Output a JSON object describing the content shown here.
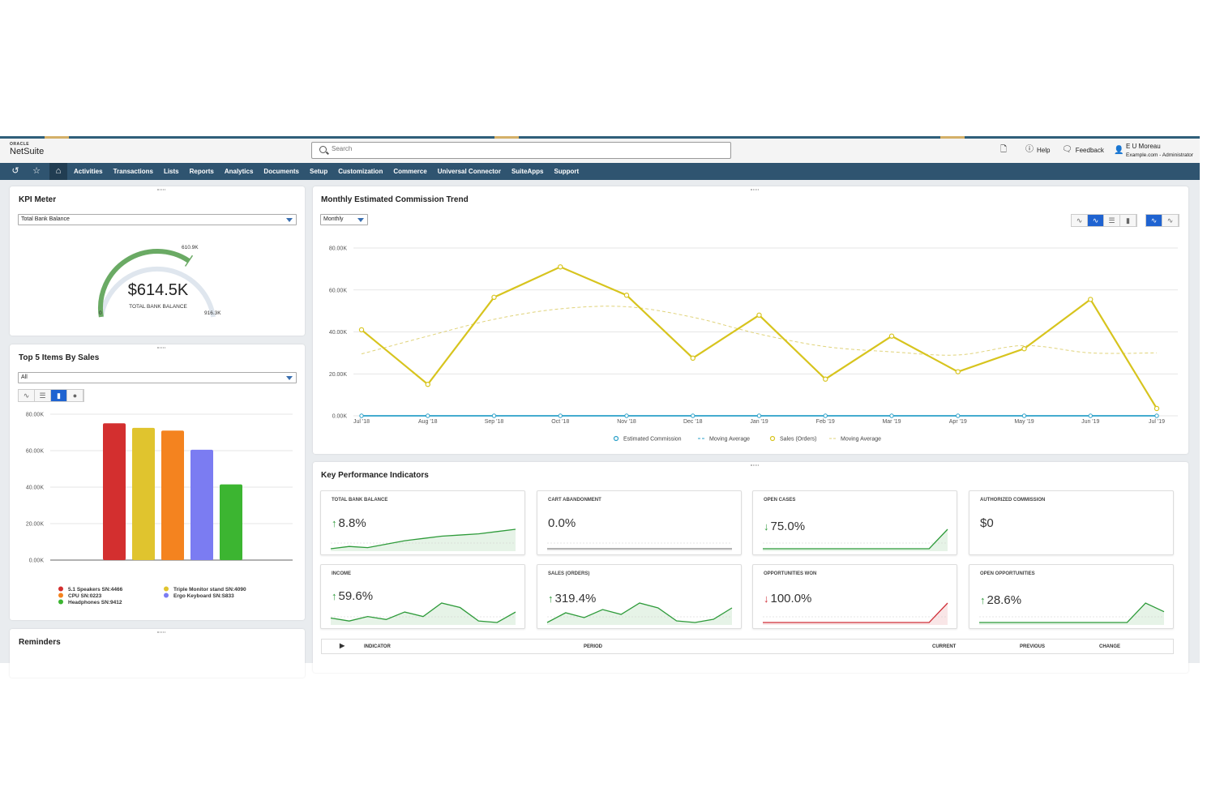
{
  "header": {
    "logo_top": "ORACLE",
    "logo_bottom": "NetSuite",
    "search_placeholder": "Search",
    "help": "Help",
    "feedback": "Feedback",
    "user_name": "E U Moreau",
    "user_sub": "Example.com - Administrator"
  },
  "nav": {
    "items": [
      "Activities",
      "Transactions",
      "Lists",
      "Reports",
      "Analytics",
      "Documents",
      "Setup",
      "Customization",
      "Commerce",
      "Universal Connector",
      "SuiteApps",
      "Support"
    ]
  },
  "kpi_meter": {
    "title": "KPI Meter",
    "select": "Total Bank Balance",
    "value": "$614.5K",
    "label": "TOTAL BANK BALANCE",
    "min": "0",
    "max": "916.3K",
    "target": "610.9K",
    "fraction": 0.671
  },
  "top5": {
    "title": "Top 5 Items By Sales",
    "select": "All"
  },
  "reminders": {
    "title": "Reminders"
  },
  "trend": {
    "title": "Monthly Estimated Commission Trend",
    "select": "Monthly"
  },
  "kpis": {
    "title": "Key Performance Indicators",
    "cards": [
      {
        "title": "TOTAL BANK BALANCE",
        "value": "8.8%",
        "dir": "up",
        "color": "#2e9b3a"
      },
      {
        "title": "CART ABANDONMENT",
        "value": "0.0%",
        "dir": "none",
        "color": "#888888"
      },
      {
        "title": "OPEN CASES",
        "value": "75.0%",
        "dir": "down",
        "color": "#2e9b3a"
      },
      {
        "title": "AUTHORIZED COMMISSION",
        "value": "$0",
        "dir": "none",
        "color": "#888888"
      },
      {
        "title": "INCOME",
        "value": "59.6%",
        "dir": "up",
        "color": "#2e9b3a"
      },
      {
        "title": "SALES (ORDERS)",
        "value": "319.4%",
        "dir": "up",
        "color": "#2e9b3a"
      },
      {
        "title": "OPPORTUNITIES WON",
        "value": "100.0%",
        "dir": "down",
        "color": "#d0303a"
      },
      {
        "title": "OPEN OPPORTUNITIES",
        "value": "28.6%",
        "dir": "up",
        "color": "#2e9b3a"
      }
    ],
    "table_headers": {
      "indicator": "INDICATOR",
      "period": "PERIOD",
      "current": "CURRENT",
      "previous": "PREVIOUS",
      "change": "CHANGE"
    }
  },
  "chart_data": [
    {
      "type": "line",
      "x": [
        "Jul '18",
        "Aug '18",
        "Sep '18",
        "Oct '18",
        "Nov '18",
        "Dec '18",
        "Jan '19",
        "Feb '19",
        "Mar '19",
        "Apr '19",
        "May '19",
        "Jun '19",
        "Jul '19"
      ],
      "ylim": [
        0,
        80000
      ],
      "yticks": [
        "0.00K",
        "20.00K",
        "40.00K",
        "60.00K",
        "80.00K"
      ],
      "series": [
        {
          "name": "Estimated Commission",
          "color": "#2aa0c8",
          "values": [
            0,
            0,
            0,
            0,
            0,
            0,
            0,
            0,
            0,
            0,
            0,
            0,
            0
          ]
        },
        {
          "name": "Moving Average",
          "color": "#2aa0c8",
          "style": "dashed",
          "values": [
            0,
            0,
            0,
            0,
            0,
            0,
            0,
            0,
            0,
            0,
            0,
            0,
            0
          ]
        },
        {
          "name": "Sales (Orders)",
          "color": "#d7c41e",
          "values": [
            41000,
            15000,
            56500,
            71000,
            57500,
            27500,
            48000,
            17500,
            38000,
            21000,
            32000,
            55500,
            3500
          ]
        },
        {
          "name": "Moving Average",
          "color": "#e0d37a",
          "style": "dashed",
          "values": [
            29500,
            38000,
            46000,
            51000,
            52000,
            47000,
            39000,
            33000,
            30500,
            29000,
            33500,
            30000,
            30000
          ]
        }
      ],
      "grid": true,
      "legend": "bottom"
    },
    {
      "type": "bar",
      "categories": [
        "5.1 Speakers SN:4466",
        "Triple Monitor stand SN:4090",
        "CPU SN:0223",
        "Ergo Keyboard SN:S833",
        "Headphones SN:9412"
      ],
      "values": [
        75000,
        72500,
        71000,
        60500,
        41500
      ],
      "colors": [
        "#d32f2f",
        "#e0c42e",
        "#f4831f",
        "#7b7cf2",
        "#3cb531"
      ],
      "ylim": [
        0,
        80000
      ],
      "yticks": [
        "0.00K",
        "20.00K",
        "40.00K",
        "60.00K",
        "80.00K"
      ],
      "grid": true,
      "legend": "bottom"
    }
  ],
  "kpi_sparklines": [
    [
      10,
      12,
      11,
      14,
      17,
      19,
      21,
      22,
      23,
      25,
      27
    ],
    [
      0,
      0,
      0,
      0,
      0,
      0,
      0,
      0,
      0,
      0,
      0
    ],
    [
      2,
      2,
      2,
      2,
      2,
      2,
      2,
      2,
      2,
      2,
      10
    ],
    [],
    [
      5,
      3,
      6,
      4,
      9,
      6,
      15,
      12,
      3,
      2,
      9
    ],
    [
      2,
      8,
      5,
      10,
      7,
      14,
      11,
      3,
      2,
      4,
      11
    ],
    [
      1,
      1,
      1,
      1,
      1,
      1,
      1,
      1,
      1,
      1,
      12
    ],
    [
      1,
      1,
      1,
      1,
      1,
      1,
      1,
      1,
      1,
      10,
      6
    ]
  ]
}
